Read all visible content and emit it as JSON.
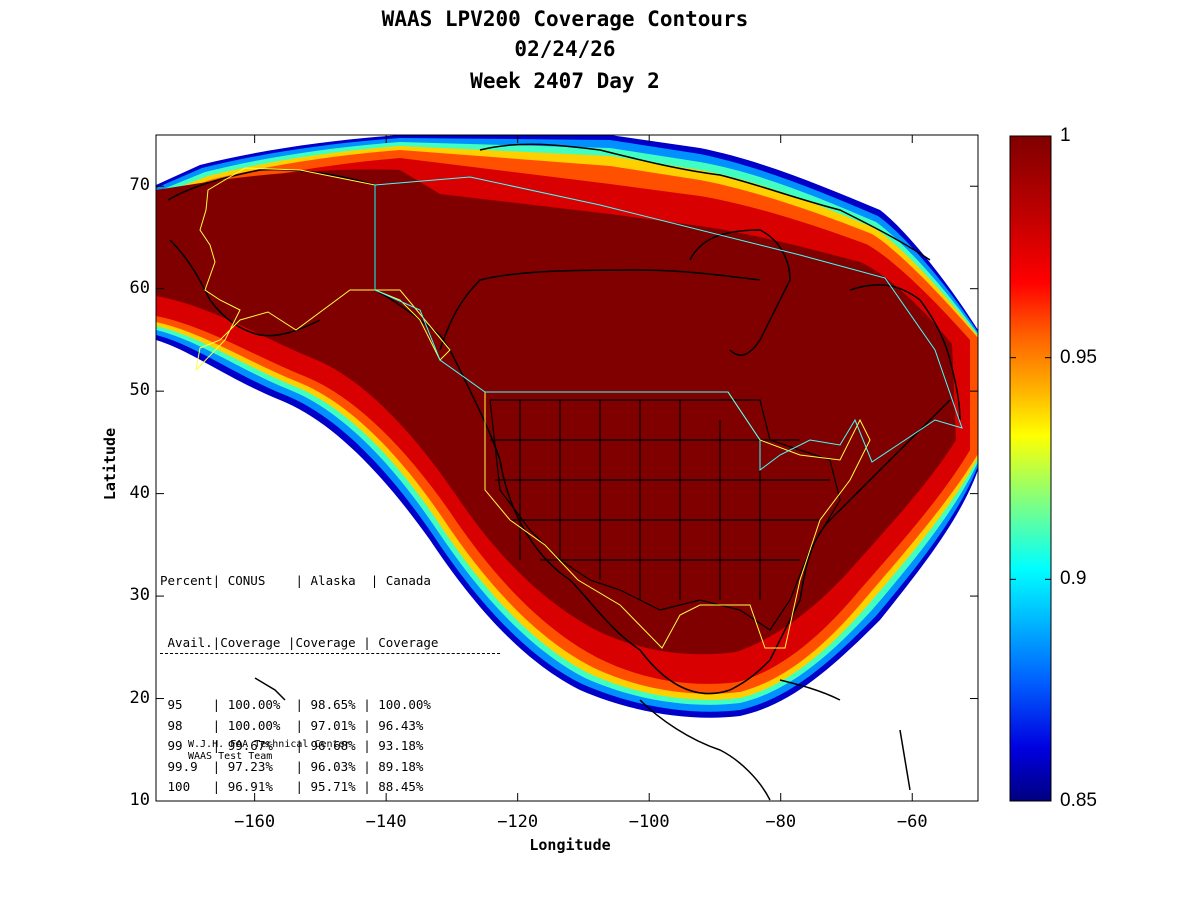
{
  "title": {
    "line1": "WAAS LPV200 Coverage Contours",
    "line2": "02/24/26",
    "line3": "Week 2407 Day 2"
  },
  "axes": {
    "xlabel": "Longitude",
    "ylabel": "Latitude",
    "x_ticks": [
      -160,
      -140,
      -120,
      -100,
      -80,
      -60
    ],
    "y_ticks": [
      10,
      20,
      30,
      40,
      50,
      60,
      70
    ],
    "xlim": [
      -175,
      -50
    ],
    "ylim": [
      10,
      75
    ]
  },
  "colorbar": {
    "ticks": [
      "1",
      "0.95",
      "0.9",
      "0.85"
    ],
    "range": [
      0.85,
      1.0
    ],
    "colors": [
      "#800000",
      "#d00000",
      "#ff2000",
      "#ff8000",
      "#ffd000",
      "#c0ff40",
      "#40ffc0",
      "#00c0ff",
      "#0060ff",
      "#0000d0",
      "#000080"
    ]
  },
  "stats_table": {
    "header1": [
      "Percent",
      "CONUS",
      "Alaska",
      "Canada"
    ],
    "header2": [
      "Avail.",
      "Coverage",
      "Coverage",
      "Coverage"
    ],
    "rows": [
      [
        "95",
        "100.00%",
        "98.65%",
        "100.00%"
      ],
      [
        "98",
        "100.00%",
        "97.01%",
        "96.43%"
      ],
      [
        "99",
        "99.67%",
        "96.68%",
        "93.18%"
      ],
      [
        "99.9",
        "97.23%",
        "96.03%",
        "89.18%"
      ],
      [
        "100",
        "96.91%",
        "95.71%",
        "88.45%"
      ]
    ]
  },
  "credit": {
    "line1": "W.J.H. FAA Technical Center",
    "line2": "WAAS Test Team"
  },
  "chart_data": {
    "type": "heatmap",
    "title": "WAAS LPV200 Coverage Contours",
    "subtitle": [
      "02/24/26",
      "Week 2407 Day 2"
    ],
    "xlabel": "Longitude",
    "ylabel": "Latitude",
    "xlim": [
      -175,
      -50
    ],
    "ylim": [
      10,
      75
    ],
    "colorbar_range": [
      0.85,
      1.0
    ],
    "description_values": {
      "core_coverage": 1.0,
      "edge_gradient": [
        1.0,
        0.98,
        0.96,
        0.94,
        0.92,
        0.9,
        0.88,
        0.86,
        0.85
      ]
    }
  }
}
